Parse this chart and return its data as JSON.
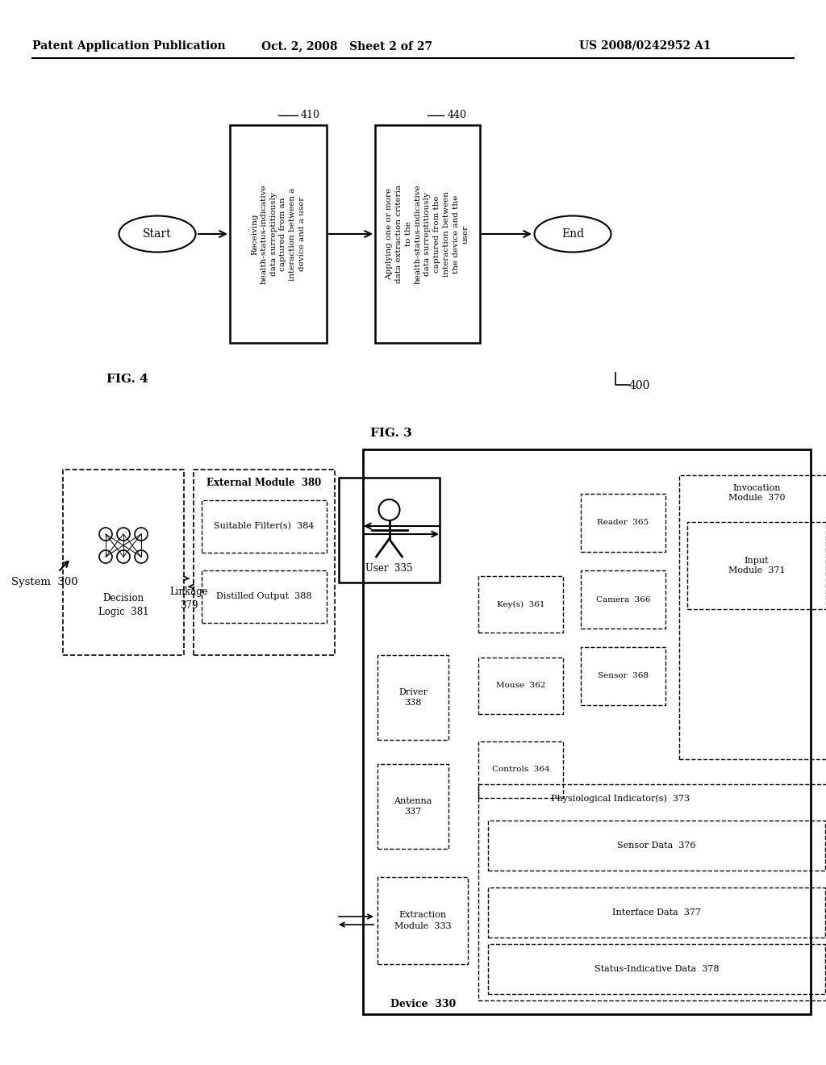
{
  "header_left": "Patent Application Publication",
  "header_center": "Oct. 2, 2008   Sheet 2 of 27",
  "header_right": "US 2008/0242952 A1",
  "fig4_label": "FIG. 4",
  "fig4_number": "400",
  "fig3_label": "FIG. 3",
  "start_label": "Start",
  "end_label": "End",
  "box410_label": "410",
  "box410_text": "Receiving\nhealth-status-indicative\ndata surreptitiously\ncaptured from an\ninteraction between a\ndevice and a user",
  "box440_label": "440",
  "box440_text": "Applying one or more\ndata extraction criteria\nto the\nhealth-status-indicative\ndata surreptitiously\ncaptured from the\ninteraction between\nthe device and the\nuser",
  "system_label": "System  300",
  "user_label": "User  335",
  "device_label": "Device  330",
  "external_module_label": "External Module  380",
  "decision_logic_label": "Decision\nLogic  381",
  "linkage_label": "Linkage\n379",
  "extraction_label": "Extraction\nModule  333",
  "suitable_filter_label": "Suitable Filter(s)  384",
  "distilled_output_label": "Distilled Output  388",
  "antenna_label": "Antenna\n337",
  "driver_label": "Driver\n338",
  "keys_label": "Key(s)  361",
  "mouse_label": "Mouse  362",
  "controls_label": "Controls  364",
  "reader_label": "Reader  365",
  "camera_label": "Camera  366",
  "sensor_label": "Sensor  368",
  "invocation_label": "Invocation\nModule  370",
  "input_module_label": "Input\nModule  371",
  "physio_label": "Physiological Indicator(s)  373",
  "sensor_data_label": "Sensor Data  376",
  "interface_data_label": "Interface Data  377",
  "status_data_label": "Status-Indicative Data  378",
  "bg_color": "#ffffff",
  "text_color": "#000000"
}
